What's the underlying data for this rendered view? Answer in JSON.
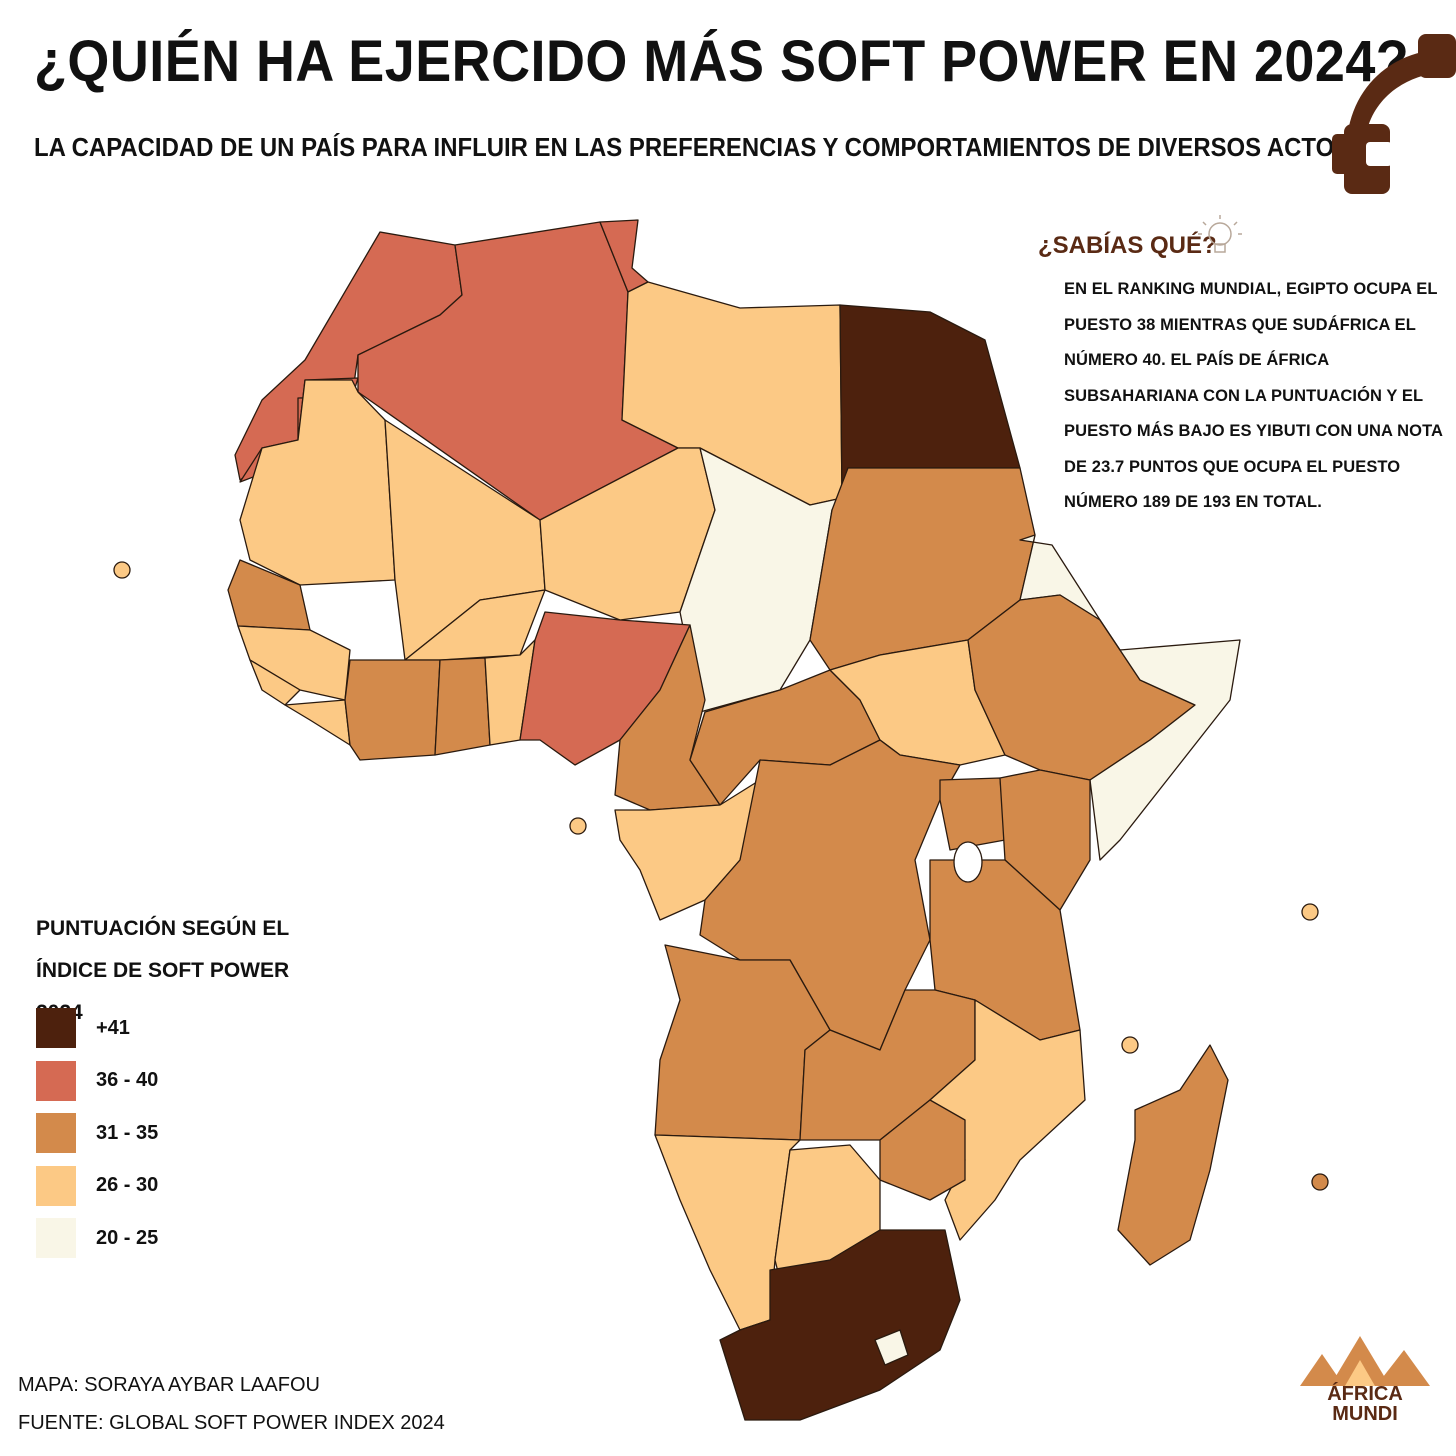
{
  "title": "¿QUIÉN HA EJERCIDO MÁS SOFT POWER EN 2024?",
  "subtitle": "LA CAPACIDAD DE UN PAÍS PARA INFLUIR EN LAS PREFERENCIAS Y COMPORTAMIENTOS DE DIVERSOS ACTORES",
  "fact": {
    "title": "¿SABÍAS QUÉ?",
    "body": "EN EL RANKING MUNDIAL, EGIPTO OCUPA EL PUESTO 38 MIENTRAS QUE SUDÁFRICA EL NÚMERO 40. EL PAÍS DE ÁFRICA SUBSAHARIANA CON LA PUNTUACIÓN Y EL PUESTO MÁS BAJO ES YIBUTI CON UNA NOTA DE 23.7 PUNTOS QUE OCUPA EL PUESTO NÚMERO 189 DE 193 EN TOTAL.",
    "icon": "lightbulb-icon"
  },
  "legend": {
    "title": "PUNTUACIÓN SEGÚN EL ÍNDICE DE SOFT POWER 2024",
    "items": [
      {
        "label": "+41",
        "color": "#4d210d"
      },
      {
        "label": "36 - 40",
        "color": "#d56a53"
      },
      {
        "label": "31 - 35",
        "color": "#d38a4b"
      },
      {
        "label": "26 - 30",
        "color": "#fcc985"
      },
      {
        "label": "20 - 25",
        "color": "#f9f6e7"
      }
    ]
  },
  "credits": {
    "map": "MAPA: SORAYA AYBAR LAAFOU",
    "source": "FUENTE: GLOBAL SOFT POWER INDEX 2024"
  },
  "brand": {
    "line1": "ÁFRICA",
    "line2": "MUNDI"
  },
  "colors": {
    "brand": "#5a2a14",
    "top_logo": "#5a2a14",
    "border": "#2a1a0f"
  }
}
